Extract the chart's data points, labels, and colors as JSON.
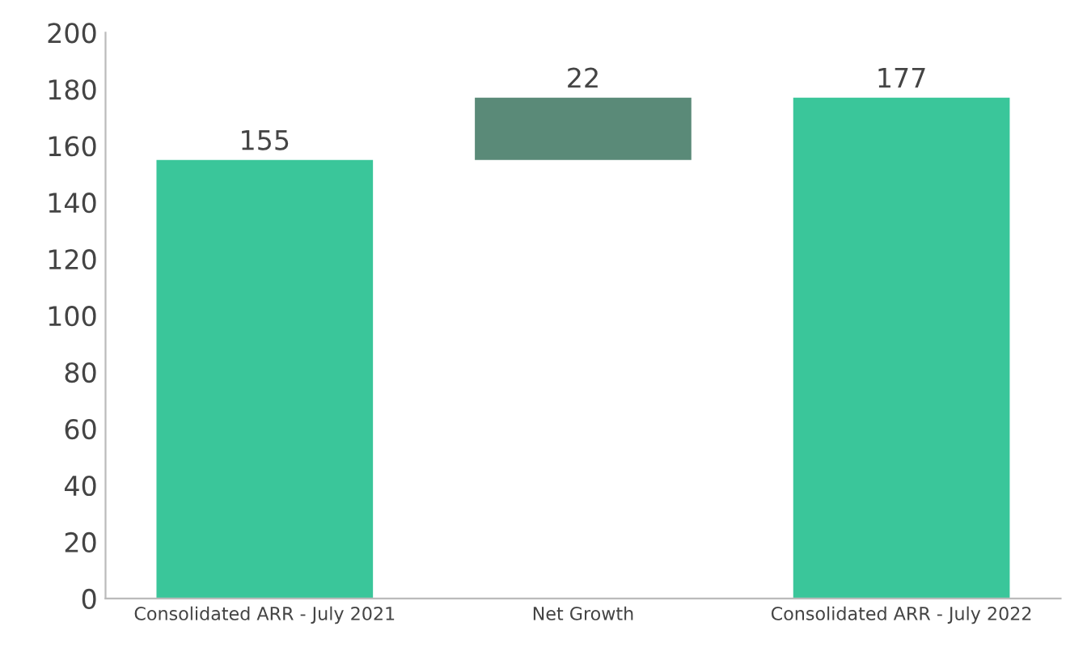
{
  "chart_data": {
    "type": "bar",
    "categories": [
      "Consolidated ARR - July 2021",
      "Net Growth",
      "Consolidated ARR - July 2022"
    ],
    "values": [
      155,
      22,
      177
    ],
    "base": [
      0,
      155,
      0
    ],
    "colors": [
      "#3ac69a",
      "#5a8a78",
      "#3ac69a"
    ],
    "ylim": [
      0,
      200
    ],
    "yticks": [
      0,
      20,
      40,
      60,
      80,
      100,
      120,
      140,
      160,
      180,
      200
    ],
    "data_labels": true,
    "grid": false,
    "legend": false
  }
}
